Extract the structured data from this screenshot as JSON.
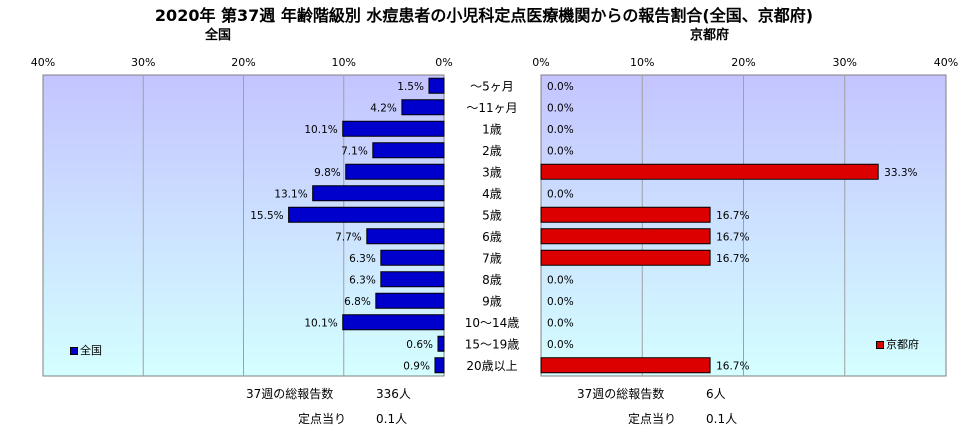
{
  "title": "2020年 第37週 年齢階級別 水痘患者の小児科定点医療機関からの報告割合(全国、京都府)",
  "chart_data": [
    {
      "type": "bar",
      "orientation": "horizontal",
      "title": "全国",
      "direction": "right-to-left",
      "xlim": [
        0,
        40
      ],
      "ticks": [
        "0%",
        "10%",
        "20%",
        "30%",
        "40%"
      ],
      "tick_values": [
        0,
        10,
        20,
        30,
        40
      ],
      "categories": [
        "～5ヶ月",
        "～11ヶ月",
        "1歳",
        "2歳",
        "3歳",
        "4歳",
        "5歳",
        "6歳",
        "7歳",
        "8歳",
        "9歳",
        "10～14歳",
        "15～19歳",
        "20歳以上"
      ],
      "values": [
        1.5,
        4.2,
        10.1,
        7.1,
        9.8,
        13.1,
        15.5,
        7.7,
        6.3,
        6.3,
        6.8,
        10.1,
        0.6,
        0.9
      ],
      "labels": [
        "1.5%",
        "4.2%",
        "10.1%",
        "7.1%",
        "9.8%",
        "13.1%",
        "15.5%",
        "7.7%",
        "6.3%",
        "6.3%",
        "6.8%",
        "10.1%",
        "0.6%",
        "0.9%"
      ],
      "series": [
        {
          "name": "全国",
          "color": "#0000cc"
        }
      ],
      "legend": "bottom-left",
      "grid": true
    },
    {
      "type": "bar",
      "orientation": "horizontal",
      "title": "京都府",
      "direction": "left-to-right",
      "xlim": [
        0,
        40
      ],
      "ticks": [
        "0%",
        "10%",
        "20%",
        "30%",
        "40%"
      ],
      "tick_values": [
        0,
        10,
        20,
        30,
        40
      ],
      "categories": [
        "～5ヶ月",
        "～11ヶ月",
        "1歳",
        "2歳",
        "3歳",
        "4歳",
        "5歳",
        "6歳",
        "7歳",
        "8歳",
        "9歳",
        "10～14歳",
        "15～19歳",
        "20歳以上"
      ],
      "values": [
        0.0,
        0.0,
        0.0,
        0.0,
        33.3,
        0.0,
        16.7,
        16.7,
        16.7,
        0.0,
        0.0,
        0.0,
        0.0,
        16.7
      ],
      "labels": [
        "0.0%",
        "0.0%",
        "0.0%",
        "0.0%",
        "33.3%",
        "0.0%",
        "16.7%",
        "16.7%",
        "16.7%",
        "0.0%",
        "0.0%",
        "0.0%",
        "0.0%",
        "16.7%"
      ],
      "series": [
        {
          "name": "京都府",
          "color": "#dd0000"
        }
      ],
      "legend": "bottom-right",
      "grid": true
    }
  ],
  "footer": {
    "national": {
      "total_label": "37週の総報告数",
      "total_value": "336人",
      "per_label": "定点当り",
      "per_value": "0.1人"
    },
    "kyoto": {
      "total_label": "37週の総報告数",
      "total_value": "6人",
      "per_label": "定点当り",
      "per_value": "0.1人"
    }
  },
  "colors": {
    "plot_top": "#c4c4ff",
    "plot_bottom": "#d4ffff",
    "national_bar": "#0000cc",
    "kyoto_bar": "#dd0000"
  }
}
